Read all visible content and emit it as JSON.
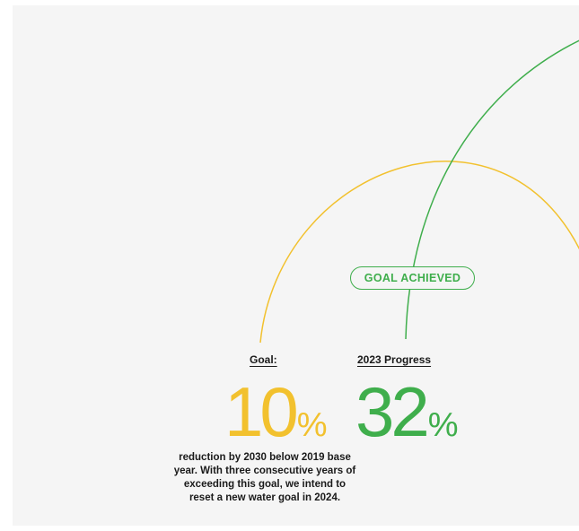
{
  "badge": {
    "text": "GOAL ACHIEVED"
  },
  "goal": {
    "label": "Goal:",
    "value": "10",
    "unit": "%",
    "description": "reduction by 2030 below 2019 base year. With three consecutive years of exceeding this goal, we intend to reset a new water goal in 2024.",
    "color": "#f2c12e"
  },
  "progress": {
    "label": "2023 Progress",
    "value": "32",
    "unit": "%",
    "color": "#3fae4c"
  },
  "colors": {
    "background": "#f5f5f5",
    "text": "#1a1a1a"
  }
}
